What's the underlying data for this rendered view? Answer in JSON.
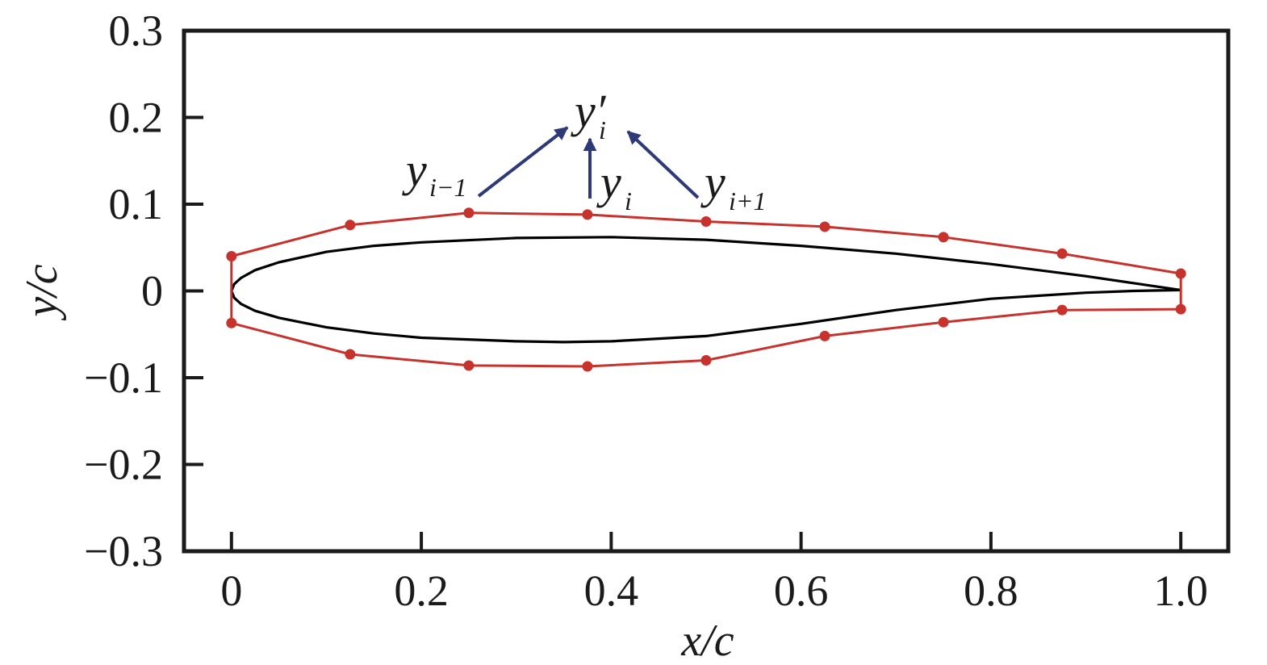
{
  "chart_data": {
    "type": "line",
    "xlabel": "x/c",
    "ylabel": "y/c",
    "xlim": [
      -0.05,
      1.05
    ],
    "ylim": [
      -0.3,
      0.3
    ],
    "x_ticks": [
      0,
      0.2,
      0.4,
      0.6,
      0.8,
      1.0
    ],
    "x_tick_labels": [
      "0",
      "0.2",
      "0.4",
      "0.6",
      "0.8",
      "1.0"
    ],
    "y_ticks": [
      0.3,
      0.2,
      0.1,
      0,
      -0.1,
      -0.2,
      -0.3
    ],
    "y_tick_labels": [
      "0.3",
      "0.2",
      "0.1",
      "0",
      "−0.1",
      "−0.2",
      "−0.3"
    ],
    "grid": false,
    "series": [
      {
        "color": "#000000",
        "points": [
          [
            1.0,
            0.001
          ],
          [
            0.95,
            0.009
          ],
          [
            0.9,
            0.017
          ],
          [
            0.8,
            0.031
          ],
          [
            0.7,
            0.043
          ],
          [
            0.6,
            0.052
          ],
          [
            0.5,
            0.059
          ],
          [
            0.4,
            0.062
          ],
          [
            0.3,
            0.061
          ],
          [
            0.2,
            0.056
          ],
          [
            0.15,
            0.052
          ],
          [
            0.1,
            0.045
          ],
          [
            0.05,
            0.033
          ],
          [
            0.025,
            0.024
          ],
          [
            0.01,
            0.015
          ],
          [
            0.003,
            0.008
          ],
          [
            0.0,
            0.0
          ],
          [
            0.003,
            -0.008
          ],
          [
            0.01,
            -0.015
          ],
          [
            0.025,
            -0.023
          ],
          [
            0.05,
            -0.031
          ],
          [
            0.1,
            -0.042
          ],
          [
            0.15,
            -0.049
          ],
          [
            0.2,
            -0.054
          ],
          [
            0.3,
            -0.058
          ],
          [
            0.35,
            -0.059
          ],
          [
            0.4,
            -0.058
          ],
          [
            0.5,
            -0.052
          ],
          [
            0.6,
            -0.038
          ],
          [
            0.7,
            -0.022
          ],
          [
            0.8,
            -0.009
          ],
          [
            0.9,
            -0.002
          ],
          [
            0.95,
            0.0
          ],
          [
            1.0,
            0.001
          ]
        ]
      },
      {
        "color": "#c8322d",
        "markers": true,
        "points": [
          [
            1.0,
            0.02
          ],
          [
            0.875,
            0.043
          ],
          [
            0.75,
            0.062
          ],
          [
            0.625,
            0.074
          ],
          [
            0.5,
            0.08
          ],
          [
            0.375,
            0.088
          ],
          [
            0.25,
            0.09
          ],
          [
            0.125,
            0.076
          ],
          [
            0.0,
            0.04
          ],
          [
            0.0,
            -0.037
          ],
          [
            0.125,
            -0.073
          ],
          [
            0.25,
            -0.086
          ],
          [
            0.375,
            -0.087
          ],
          [
            0.5,
            -0.08
          ],
          [
            0.625,
            -0.052
          ],
          [
            0.75,
            -0.036
          ],
          [
            0.875,
            -0.022
          ],
          [
            1.0,
            -0.021
          ],
          [
            1.0,
            0.02
          ]
        ]
      }
    ],
    "annotations": {
      "arrow_color": "#2e3a78",
      "top": {
        "main": "y′",
        "sub": "i"
      },
      "left": {
        "main": "y",
        "sub": "i−1"
      },
      "middle": {
        "main": "y",
        "sub": "i"
      },
      "right": {
        "main": "y",
        "sub": "i+1"
      }
    }
  }
}
